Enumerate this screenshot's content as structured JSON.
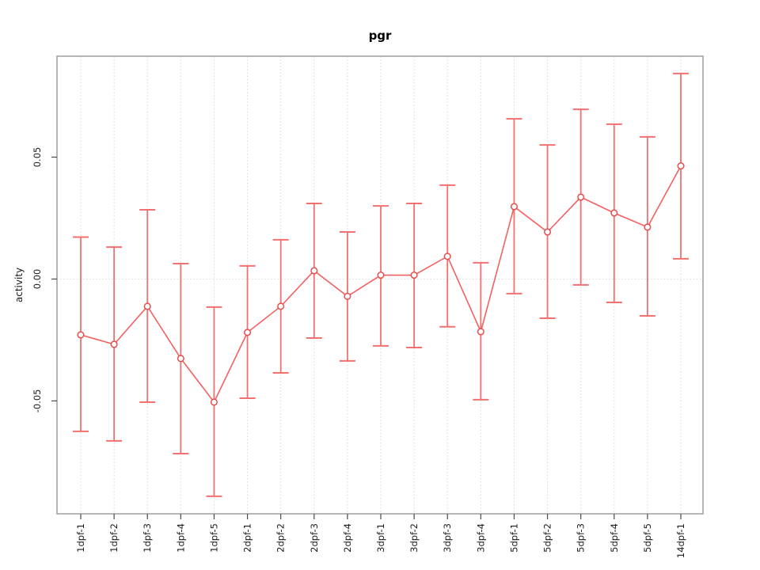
{
  "figure": {
    "title": "pgr"
  },
  "chart_data": {
    "type": "line",
    "subtype": "errorbar-line",
    "title": "pgr",
    "xlabel": "",
    "ylabel": "activity",
    "legend": "none",
    "grid": {
      "vertical_dotted_per_category": true,
      "dotted_zero_line": true
    },
    "categories": [
      "1dpf-1",
      "1dpf-2",
      "1dpf-3",
      "1dpf-4",
      "1dpf-5",
      "2dpf-1",
      "2dpf-2",
      "2dpf-3",
      "2dpf-4",
      "3dpf-1",
      "3dpf-2",
      "3dpf-3",
      "3dpf-4",
      "5dpf-1",
      "5dpf-2",
      "5dpf-3",
      "5dpf-4",
      "5dpf-5",
      "14dpf-1"
    ],
    "series": [
      {
        "name": "pgr",
        "values": [
          -0.0229,
          -0.0268,
          -0.0112,
          -0.0326,
          -0.0505,
          -0.0219,
          -0.0112,
          0.0034,
          -0.0071,
          0.0016,
          0.0016,
          0.0093,
          -0.0216,
          0.0297,
          0.0193,
          0.0336,
          0.0271,
          0.0213,
          0.0464
        ],
        "error_high": [
          0.0172,
          0.0131,
          0.0284,
          0.0063,
          -0.0115,
          0.0054,
          0.0161,
          0.031,
          0.0193,
          0.03,
          0.031,
          0.0385,
          0.0067,
          0.0657,
          0.055,
          0.0696,
          0.0635,
          0.0583,
          0.0843
        ],
        "error_low": [
          -0.0625,
          -0.0664,
          -0.0505,
          -0.0716,
          -0.0891,
          -0.0489,
          -0.0385,
          -0.0242,
          -0.0336,
          -0.0274,
          -0.0281,
          -0.0196,
          -0.0495,
          -0.006,
          -0.0161,
          -0.0024,
          -0.0096,
          -0.0151,
          0.0083
        ]
      }
    ],
    "yticks": [
      {
        "value": -0.05,
        "label": "-0.05"
      },
      {
        "value": 0.0,
        "label": "0.00"
      },
      {
        "value": 0.05,
        "label": "0.05"
      }
    ],
    "ylim": [
      -0.0963,
      0.0914
    ],
    "colors": {
      "errorbar": "#f37070",
      "line": "#f26060",
      "marker_stroke": "#e94c4c",
      "marker_fill": "#ffffff",
      "grid": "#d7d7d7",
      "zero_line": "#dedede",
      "box": "#8f8f8f",
      "tick": "#4a4a4a",
      "text": "#1a1a1a"
    }
  }
}
